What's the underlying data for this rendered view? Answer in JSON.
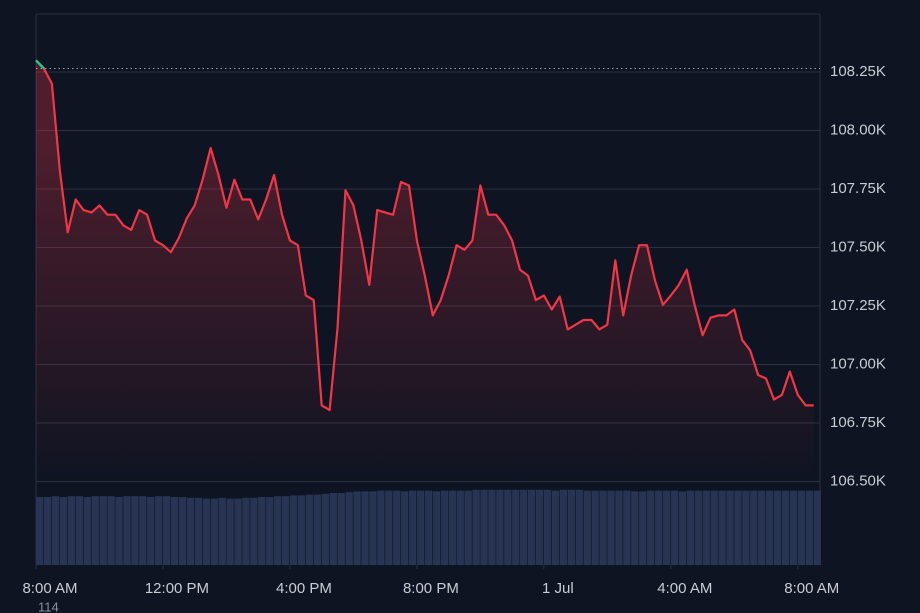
{
  "chart_data": {
    "type": "line",
    "x": [
      0,
      0.25,
      0.5,
      0.75,
      1,
      1.25,
      1.5,
      1.75,
      2,
      2.25,
      2.5,
      2.75,
      3,
      3.25,
      3.5,
      3.75,
      4,
      4.25,
      4.5,
      4.75,
      5,
      5.25,
      5.5,
      5.75,
      6,
      6.25,
      6.5,
      6.75,
      7,
      7.25,
      7.5,
      7.75,
      8,
      8.25,
      8.5,
      8.75,
      9,
      9.25,
      9.5,
      9.75,
      10,
      10.25,
      10.5,
      10.75,
      11,
      11.25,
      11.5,
      11.75,
      12,
      12.25,
      12.5,
      12.75,
      13,
      13.25,
      13.5,
      13.75,
      14,
      14.25,
      14.5,
      14.75,
      15,
      15.25,
      15.5,
      15.75,
      16,
      16.25,
      16.5,
      16.75,
      17,
      17.25,
      17.5,
      17.75,
      18,
      18.25,
      18.5,
      18.75,
      19,
      19.25,
      19.5,
      19.75,
      20,
      20.25,
      20.5,
      20.75,
      21,
      21.25,
      21.5,
      21.75,
      22,
      22.25,
      22.5,
      22.75,
      23,
      23.25,
      23.5,
      23.75,
      24,
      24.25,
      24.5
    ],
    "values": [
      108300,
      108265,
      108200,
      107830,
      107565,
      107705,
      107660,
      107650,
      107680,
      107640,
      107640,
      107595,
      107575,
      107660,
      107640,
      107530,
      107510,
      107480,
      107540,
      107625,
      107680,
      107790,
      107925,
      107810,
      107670,
      107790,
      107705,
      107705,
      107620,
      107705,
      107810,
      107640,
      107530,
      107510,
      107295,
      107275,
      106825,
      106805,
      107155,
      107745,
      107680,
      107530,
      107340,
      107660,
      107650,
      107640,
      107780,
      107765,
      107530,
      107380,
      107210,
      107275,
      107380,
      107510,
      107490,
      107530,
      107765,
      107640,
      107640,
      107595,
      107530,
      107405,
      107380,
      107275,
      107295,
      107235,
      107290,
      107150,
      107170,
      107190,
      107190,
      107150,
      107170,
      107445,
      107210,
      107380,
      107510,
      107510,
      107360,
      107255,
      107295,
      107340,
      107405,
      107255,
      107125,
      107200,
      107210,
      107210,
      107235,
      107105,
      107060,
      106955,
      106940,
      106850,
      106870,
      106970,
      106870,
      106825,
      106825
    ],
    "volume": [
      85,
      85,
      86,
      85,
      86,
      86,
      85,
      86,
      86,
      86,
      85,
      86,
      86,
      86,
      85,
      86,
      86,
      85,
      85,
      84,
      84,
      83,
      83,
      84,
      83,
      83,
      84,
      84,
      85,
      85,
      86,
      86,
      87,
      87,
      88,
      88,
      89,
      90,
      90,
      91,
      92,
      92,
      92,
      93,
      93,
      93,
      92,
      93,
      93,
      93,
      92,
      93,
      93,
      93,
      93,
      94,
      94,
      94,
      94,
      94,
      94,
      94,
      94,
      94,
      94,
      93,
      94,
      94,
      94,
      93,
      93,
      93,
      93,
      93,
      93,
      92,
      92,
      93,
      93,
      93,
      93,
      92,
      93,
      93,
      93,
      93,
      93,
      93,
      93,
      93,
      93,
      93,
      93,
      93,
      93,
      93,
      93,
      93,
      93
    ],
    "volume_lim": [
      0,
      100
    ],
    "baseline": 108265,
    "color": "#f23645",
    "up_color": "#22c98a",
    "volume_color": "#283453",
    "xlim": [
      0,
      24.7
    ],
    "xticks": [
      {
        "value": 0,
        "label": "8:00 AM"
      },
      {
        "value": 4,
        "label": "12:00 PM"
      },
      {
        "value": 8,
        "label": "4:00 PM"
      },
      {
        "value": 12,
        "label": "8:00 PM"
      },
      {
        "value": 16,
        "label": "1 Jul"
      },
      {
        "value": 20,
        "label": "4:00 AM"
      },
      {
        "value": 24,
        "label": "8:00 AM"
      }
    ],
    "ylim": [
      106143,
      108498
    ],
    "yticks": [
      {
        "value": 106500,
        "label": "106.50K"
      },
      {
        "value": 106750,
        "label": "106.75K"
      },
      {
        "value": 107000,
        "label": "107.00K"
      },
      {
        "value": 107250,
        "label": "107.25K"
      },
      {
        "value": 107500,
        "label": "107.50K"
      },
      {
        "value": 107750,
        "label": "107.75K"
      },
      {
        "value": 108000,
        "label": "108.00K"
      },
      {
        "value": 108250,
        "label": "108.25K"
      }
    ],
    "grid": true,
    "footer_text": "114"
  }
}
